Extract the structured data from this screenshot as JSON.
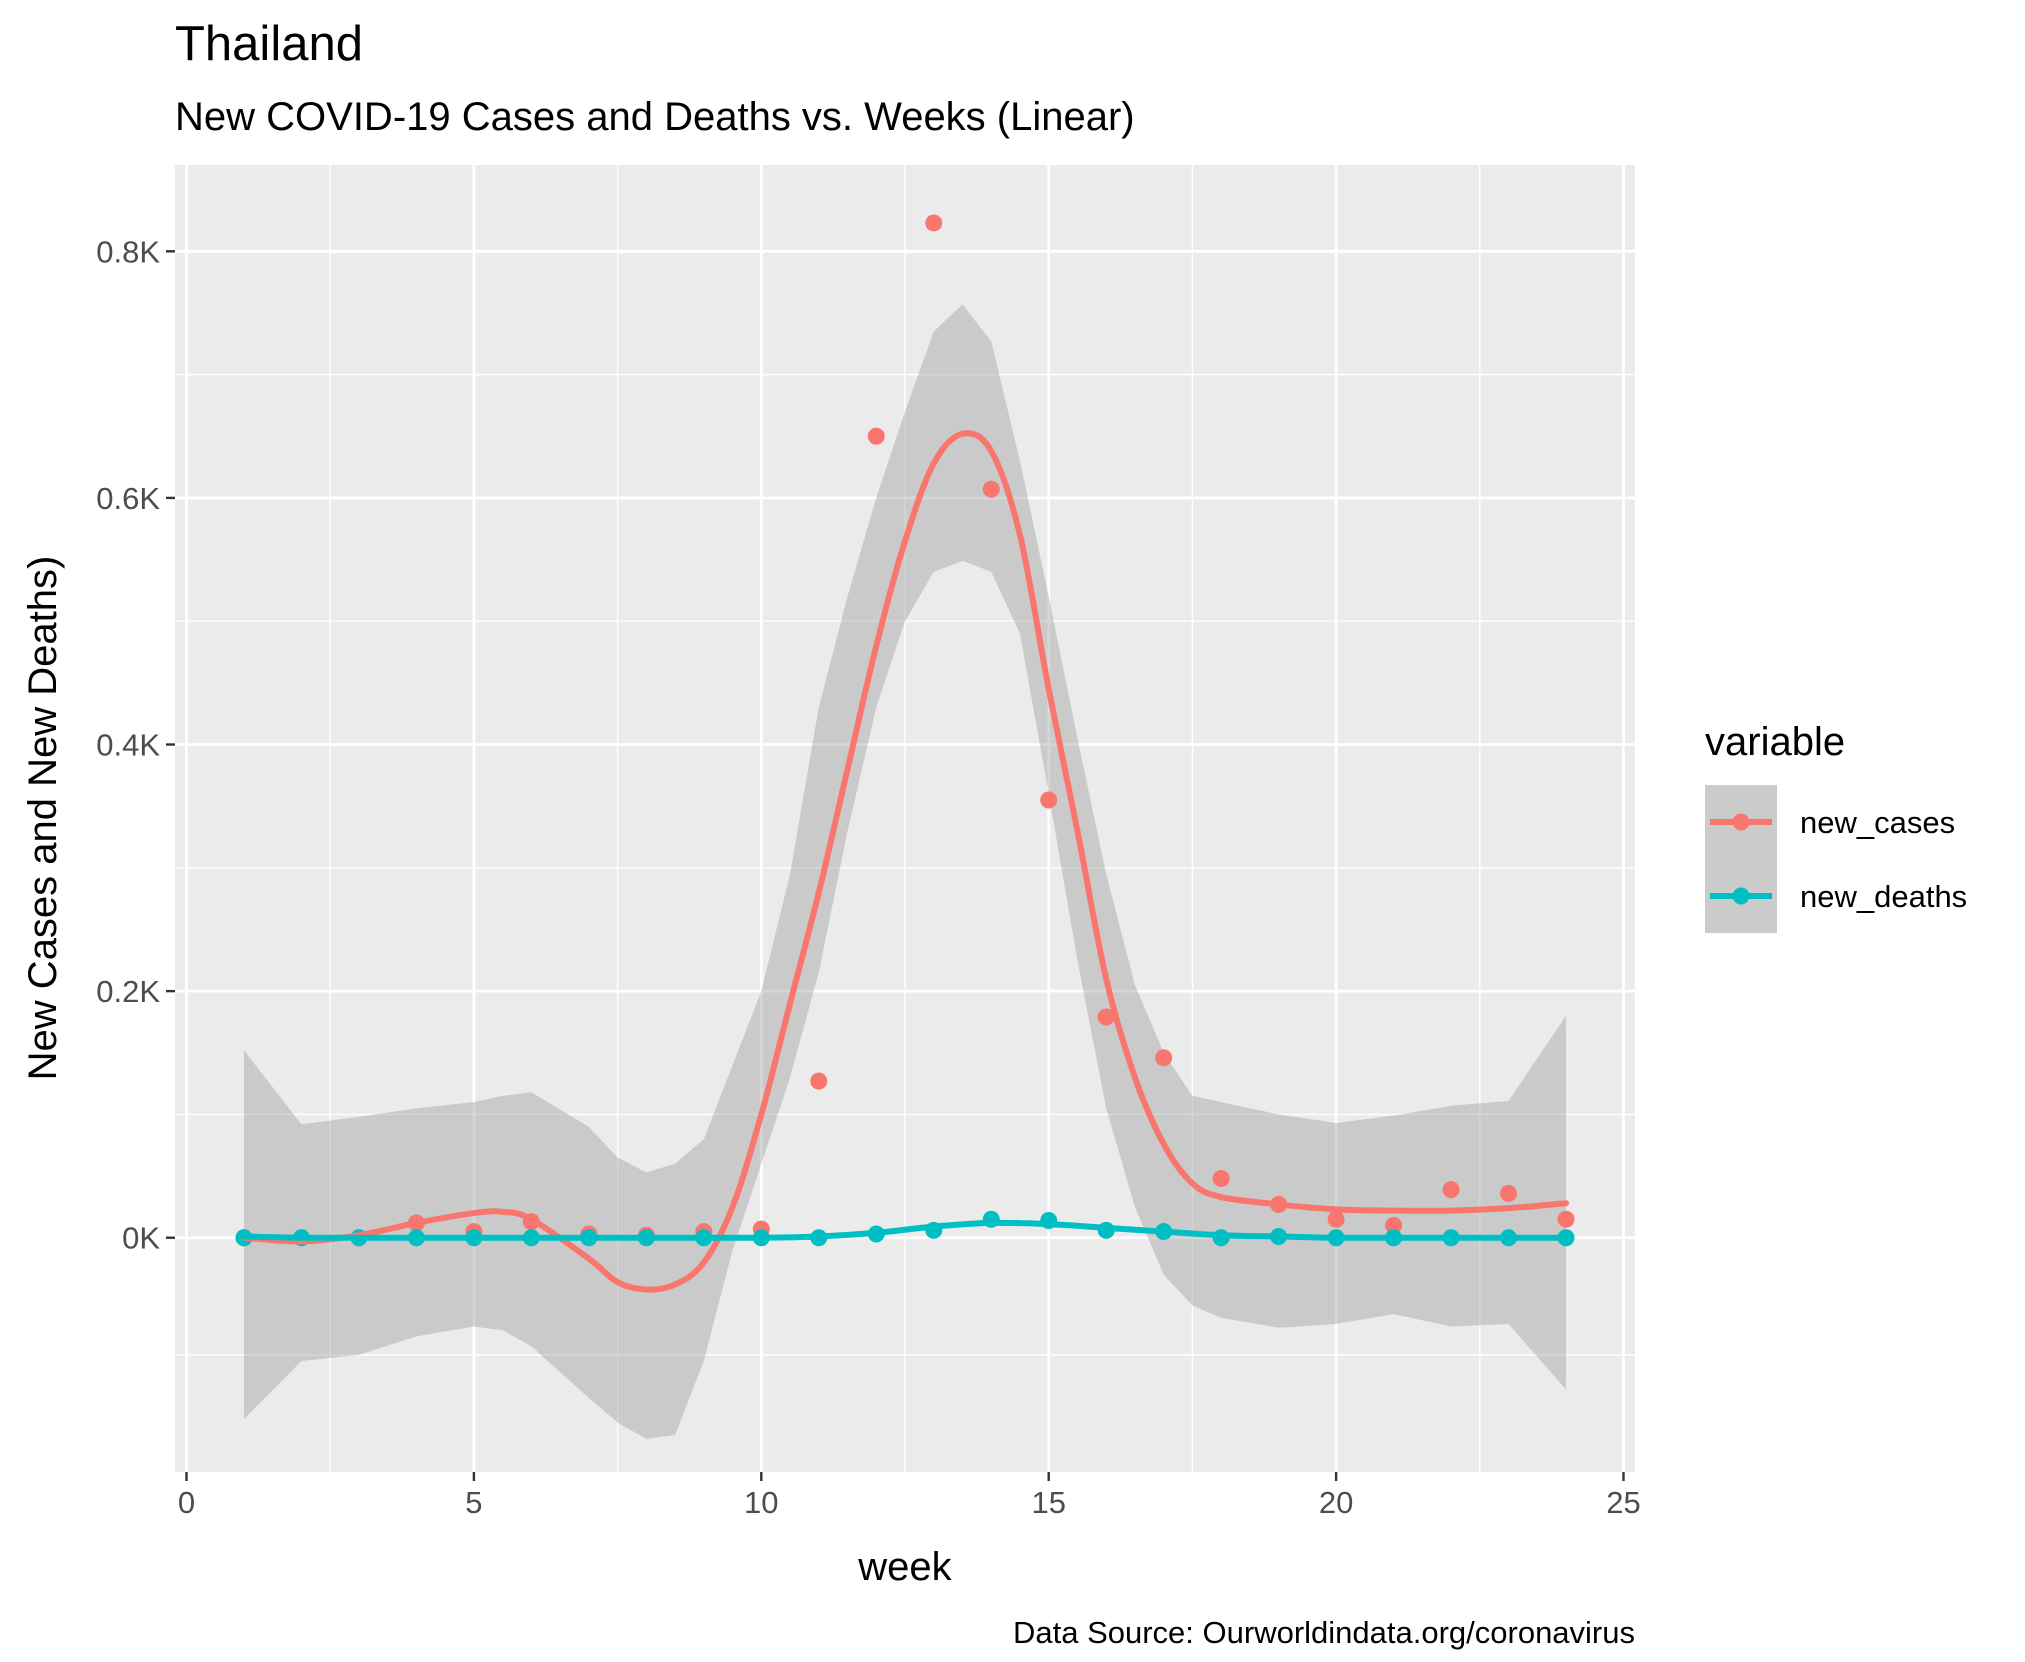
{
  "chart_data": {
    "type": "scatter",
    "title": "Thailand",
    "subtitle": "New COVID-19 Cases and Deaths vs. Weeks (Linear)",
    "xlabel": "week",
    "ylabel": "New Cases and New Deaths)",
    "caption": "Data Source: Ourworldindata.org/coronavirus",
    "xlim": [
      -0.2,
      25.2
    ],
    "ylim": [
      -190,
      870
    ],
    "x_ticks": [
      0,
      5,
      10,
      15,
      20,
      25
    ],
    "x_tick_labels": [
      "0",
      "5",
      "10",
      "15",
      "20",
      "25"
    ],
    "y_ticks": [
      0,
      200,
      400,
      600,
      800
    ],
    "y_tick_labels": [
      "0K",
      "0.2K",
      "0.4K",
      "0.6K",
      "0.8K"
    ],
    "grid": true,
    "legend": {
      "title": "variable",
      "position": "right"
    },
    "series": [
      {
        "name": "new_cases",
        "color": "#F8766D",
        "x": [
          1,
          2,
          3,
          4,
          5,
          6,
          7,
          8,
          9,
          10,
          11,
          12,
          13,
          14,
          15,
          16,
          17,
          18,
          19,
          20,
          21,
          22,
          23,
          24
        ],
        "y": [
          0,
          0,
          0,
          12,
          5,
          13,
          3,
          2,
          5,
          7,
          127,
          650,
          823,
          607,
          355,
          179,
          146,
          48,
          27,
          15,
          10,
          39,
          36,
          15
        ],
        "smooth": {
          "x": [
            1,
            2,
            3,
            4,
            5,
            5.5,
            6,
            7,
            7.5,
            8,
            8.5,
            9,
            9.5,
            10,
            10.5,
            11,
            11.5,
            12,
            12.5,
            13,
            13.5,
            14,
            14.5,
            15,
            15.5,
            16,
            16.5,
            17,
            17.5,
            18,
            19,
            20,
            21,
            22,
            23,
            24
          ],
          "y": [
            0,
            -3,
            2,
            12,
            20,
            21,
            15,
            -17,
            -36,
            -42,
            -38,
            -20,
            25,
            100,
            190,
            280,
            380,
            480,
            565,
            628,
            652,
            638,
            570,
            445,
            330,
            210,
            130,
            76,
            44,
            33,
            27,
            23,
            22,
            22,
            24,
            28
          ],
          "lower": [
            -147,
            -100,
            -95,
            -80,
            -72,
            -75,
            -88,
            -130,
            -150,
            -163,
            -160,
            -100,
            -10,
            60,
            130,
            215,
            330,
            430,
            500,
            540,
            549,
            540,
            490,
            360,
            225,
            105,
            25,
            -30,
            -55,
            -65,
            -73,
            -70,
            -62,
            -72,
            -70,
            -123
          ],
          "upper": [
            152,
            92,
            98,
            105,
            110,
            115,
            118,
            90,
            65,
            53,
            60,
            80,
            140,
            200,
            295,
            430,
            520,
            600,
            670,
            735,
            757,
            727,
            630,
            520,
            405,
            295,
            205,
            150,
            115,
            110,
            100,
            93,
            99,
            107,
            111,
            180
          ]
        }
      },
      {
        "name": "new_deaths",
        "color": "#00BFC4",
        "x": [
          1,
          2,
          3,
          4,
          5,
          6,
          7,
          8,
          9,
          10,
          11,
          12,
          13,
          14,
          15,
          16,
          17,
          18,
          19,
          20,
          21,
          22,
          23,
          24
        ],
        "y": [
          0,
          0,
          0,
          0,
          0,
          0,
          0,
          0,
          0,
          0,
          0,
          3,
          6,
          15,
          14,
          6,
          5,
          0,
          1,
          0,
          0,
          0,
          0,
          0
        ],
        "smooth": {
          "x": [
            1,
            2,
            3,
            4,
            5,
            6,
            7,
            8,
            9,
            10,
            11,
            12,
            13,
            14,
            15,
            16,
            17,
            18,
            19,
            20,
            21,
            22,
            23,
            24
          ],
          "y": [
            1,
            0,
            0,
            0,
            0,
            0,
            0,
            0,
            0,
            0,
            1,
            4,
            9,
            12,
            11,
            8,
            5,
            2,
            1,
            0,
            0,
            0,
            0,
            0
          ]
        }
      }
    ]
  }
}
